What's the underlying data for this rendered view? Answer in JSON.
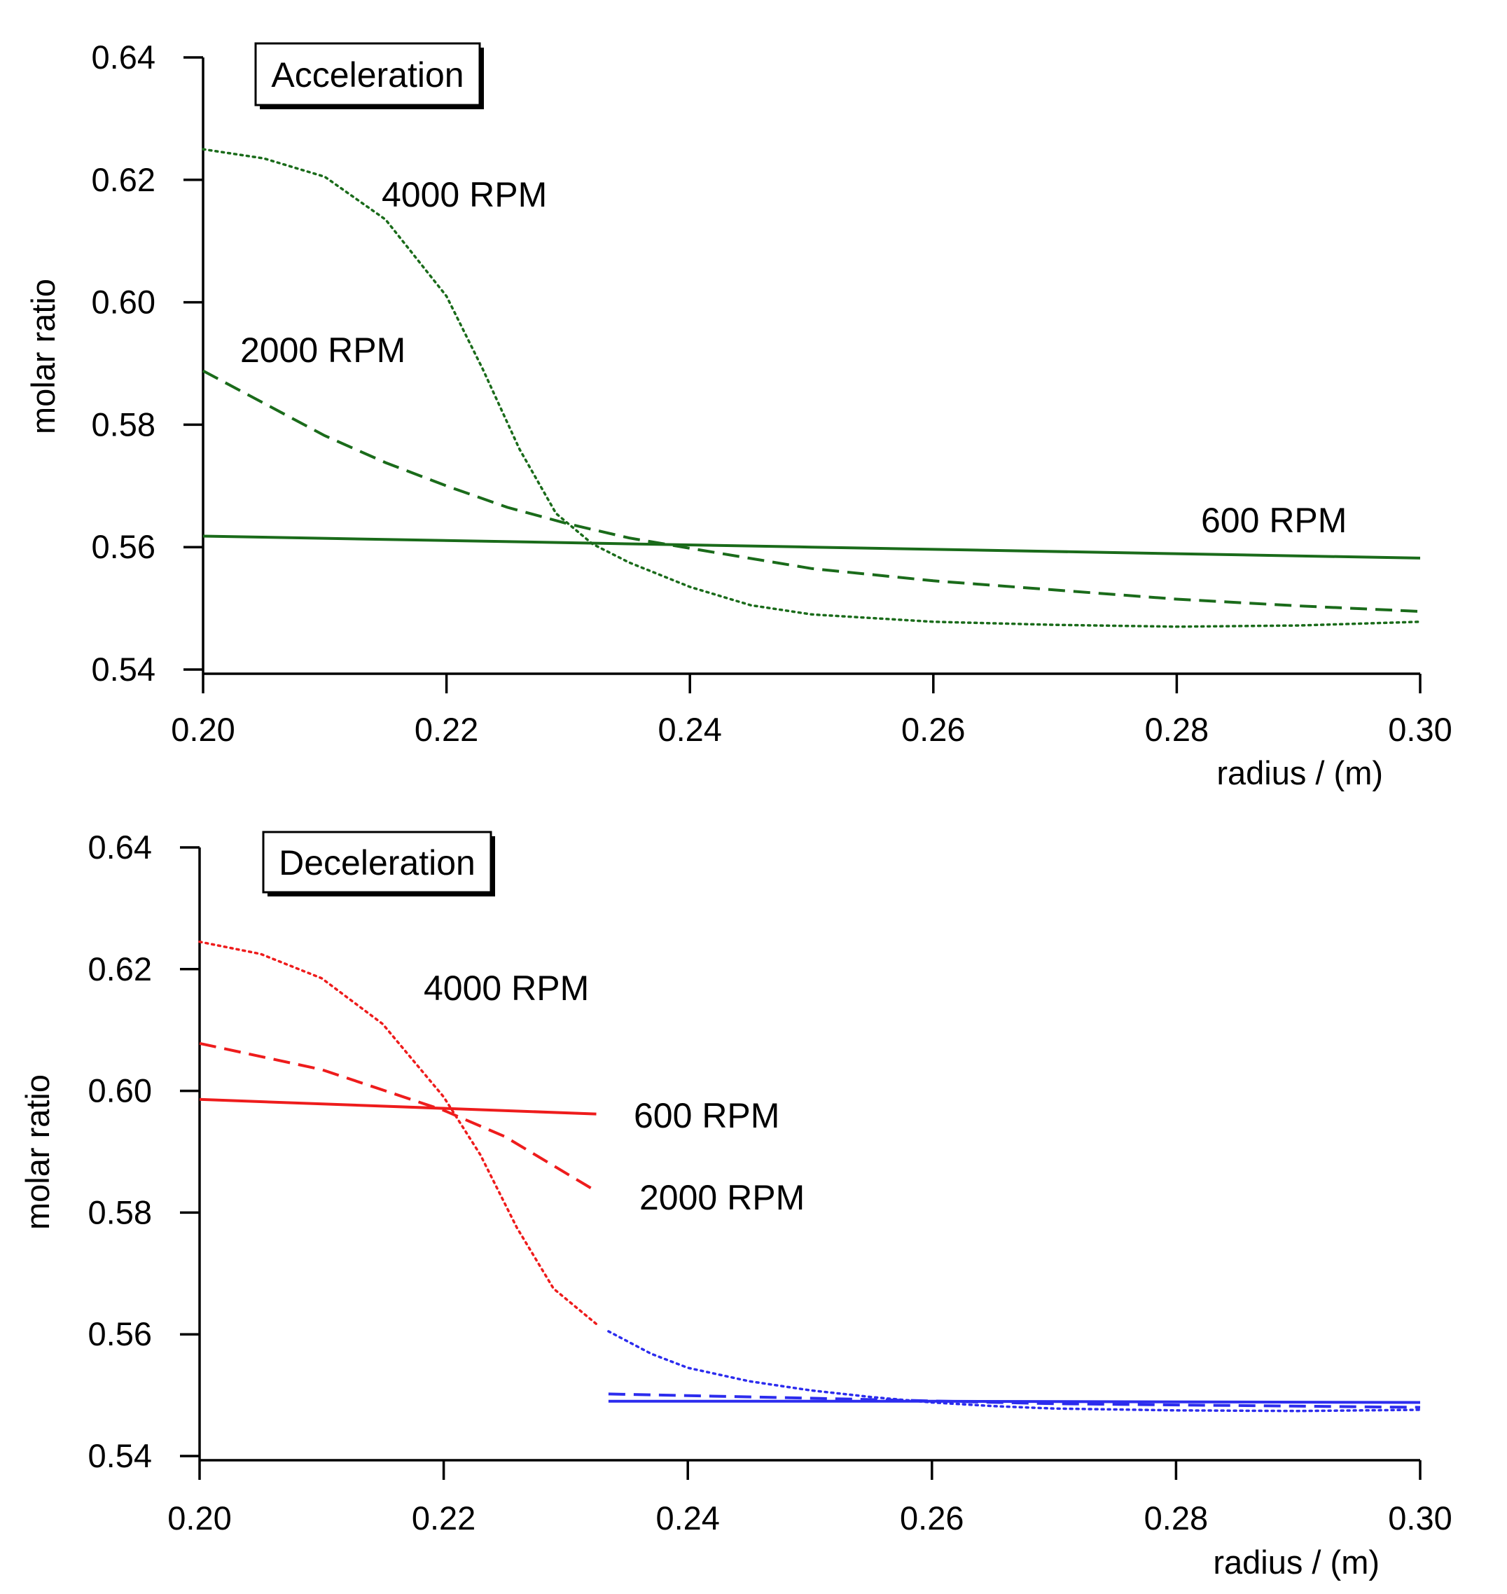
{
  "chart_data": [
    {
      "type": "line",
      "title": "Acceleration",
      "xlabel": "radius / (m)",
      "ylabel": "molar ratio",
      "xlim": [
        0.2,
        0.3
      ],
      "ylim": [
        0.54,
        0.64
      ],
      "xticks": [
        "0.20",
        "0.22",
        "0.24",
        "0.26",
        "0.28",
        "0.30"
      ],
      "yticks": [
        "0.54",
        "0.56",
        "0.58",
        "0.60",
        "0.62",
        "0.64"
      ],
      "grid": false,
      "annotations": [
        "4000 RPM",
        "2000 RPM",
        "600 RPM"
      ],
      "series": [
        {
          "name": "4000 RPM",
          "color": "#1a6b1a",
          "dash": "dotted",
          "x": [
            0.2,
            0.205,
            0.21,
            0.215,
            0.22,
            0.223,
            0.226,
            0.229,
            0.232,
            0.235,
            0.24,
            0.245,
            0.25,
            0.26,
            0.27,
            0.28,
            0.29,
            0.3
          ],
          "y": [
            0.625,
            0.6235,
            0.6205,
            0.6135,
            0.601,
            0.589,
            0.576,
            0.5655,
            0.5605,
            0.5575,
            0.5535,
            0.5505,
            0.549,
            0.5478,
            0.5473,
            0.547,
            0.5472,
            0.5478
          ]
        },
        {
          "name": "2000 RPM",
          "color": "#1a6b1a",
          "dash": "dashed",
          "x": [
            0.2,
            0.205,
            0.21,
            0.215,
            0.22,
            0.225,
            0.23,
            0.235,
            0.24,
            0.25,
            0.26,
            0.27,
            0.28,
            0.29,
            0.3
          ],
          "y": [
            0.5888,
            0.5835,
            0.5782,
            0.5738,
            0.57,
            0.5665,
            0.5638,
            0.5615,
            0.5598,
            0.5565,
            0.5545,
            0.553,
            0.5515,
            0.5504,
            0.5495
          ]
        },
        {
          "name": "600 RPM",
          "color": "#1a6b1a",
          "dash": "solid",
          "x": [
            0.2,
            0.25,
            0.3
          ],
          "y": [
            0.5618,
            0.56,
            0.5582
          ]
        }
      ]
    },
    {
      "type": "line",
      "title": "Deceleration",
      "xlabel": "radius / (m)",
      "ylabel": "molar ratio",
      "xlim": [
        0.2,
        0.3
      ],
      "ylim": [
        0.54,
        0.64
      ],
      "xticks": [
        "0.20",
        "0.22",
        "0.24",
        "0.26",
        "0.28",
        "0.30"
      ],
      "yticks": [
        "0.54",
        "0.56",
        "0.58",
        "0.60",
        "0.62",
        "0.64"
      ],
      "grid": false,
      "annotations": [
        "4000 RPM",
        "600 RPM",
        "2000 RPM"
      ],
      "series": [
        {
          "name": "4000 RPM",
          "color": "#ee1c1c",
          "dash": "dotted",
          "x": [
            0.2,
            0.205,
            0.21,
            0.215,
            0.22,
            0.223,
            0.226,
            0.229,
            0.2325
          ],
          "y": [
            0.6245,
            0.6225,
            0.6185,
            0.611,
            0.599,
            0.5895,
            0.5775,
            0.5675,
            0.5617
          ]
        },
        {
          "name": "2000 RPM",
          "color": "#ee1c1c",
          "dash": "dashed",
          "x": [
            0.2,
            0.21,
            0.22,
            0.225,
            0.2325
          ],
          "y": [
            0.6078,
            0.6035,
            0.5968,
            0.5925,
            0.5835
          ]
        },
        {
          "name": "600 RPM",
          "color": "#ee1c1c",
          "dash": "solid",
          "x": [
            0.2,
            0.2325
          ],
          "y": [
            0.5986,
            0.5962
          ]
        },
        {
          "color": "#2c2cee",
          "dash": "dotted",
          "x": [
            0.2335,
            0.237,
            0.24,
            0.245,
            0.25,
            0.255,
            0.26,
            0.265,
            0.27,
            0.28,
            0.29,
            0.3
          ],
          "y": [
            0.5605,
            0.5568,
            0.5545,
            0.5523,
            0.5508,
            0.5497,
            0.5488,
            0.5482,
            0.5478,
            0.5475,
            0.5474,
            0.5476
          ]
        },
        {
          "color": "#2c2cee",
          "dash": "dashed",
          "x": [
            0.2335,
            0.25,
            0.27,
            0.3
          ],
          "y": [
            0.5502,
            0.5495,
            0.5486,
            0.548
          ]
        },
        {
          "color": "#2c2cee",
          "dash": "solid",
          "x": [
            0.2335,
            0.26,
            0.3
          ],
          "y": [
            0.549,
            0.549,
            0.5488
          ]
        }
      ]
    }
  ]
}
